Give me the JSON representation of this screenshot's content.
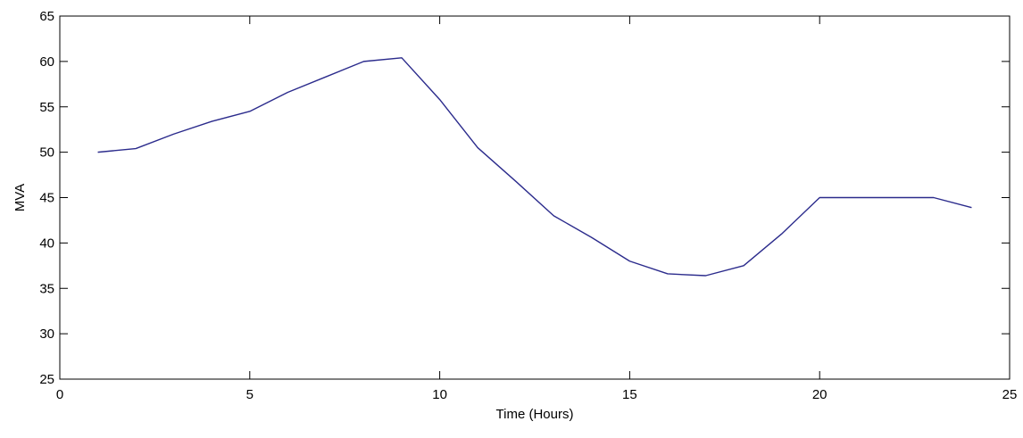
{
  "chart_data": {
    "type": "line",
    "title": "",
    "xlabel": "Time (Hours)",
    "ylabel": "MVA",
    "xlim": [
      0,
      25
    ],
    "ylim": [
      25,
      65
    ],
    "xticks": [
      0,
      5,
      10,
      15,
      20,
      25
    ],
    "yticks": [
      25,
      30,
      35,
      40,
      45,
      50,
      55,
      60,
      65
    ],
    "grid": false,
    "series": [
      {
        "color": "#2b2b8c",
        "x": [
          1,
          2,
          3,
          4,
          5,
          6,
          7,
          8,
          9,
          10,
          11,
          12,
          13,
          14,
          15,
          16,
          17,
          18,
          19,
          20,
          21,
          22,
          23,
          24
        ],
        "values": [
          50,
          50.4,
          52,
          53.4,
          54.5,
          56.6,
          58.3,
          60,
          60.4,
          55.8,
          50.5,
          46.8,
          43,
          40.6,
          38,
          36.6,
          36.4,
          37.5,
          41,
          45,
          45,
          45,
          45,
          43.9
        ]
      }
    ]
  }
}
